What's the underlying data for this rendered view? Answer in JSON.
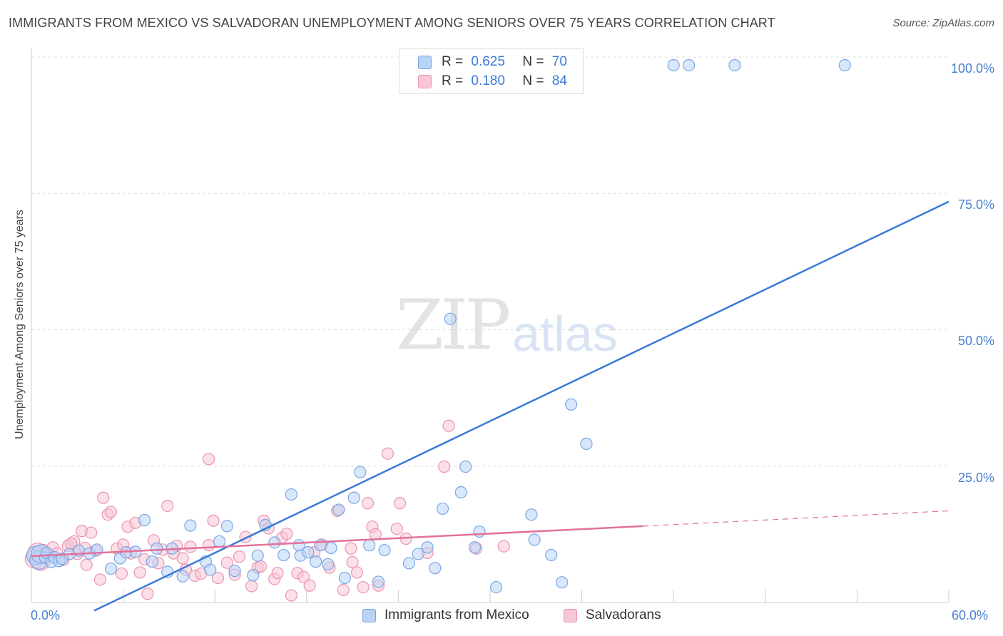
{
  "header": {
    "title": "IMMIGRANTS FROM MEXICO VS SALVADORAN UNEMPLOYMENT AMONG SENIORS OVER 75 YEARS CORRELATION CHART",
    "source": "Source: ZipAtlas.com"
  },
  "watermark": {
    "zip": "ZIP",
    "atlas": "atlas"
  },
  "legend": {
    "rows": [
      {
        "r_label": "R = ",
        "r_value": "0.625",
        "n_label": "N = ",
        "n_value": "70"
      },
      {
        "r_label": "R = ",
        "r_value": "0.180",
        "n_label": "N = ",
        "n_value": "84"
      }
    ]
  },
  "bottom_legend": [
    "Immigrants from Mexico",
    "Salvadorans"
  ],
  "colors": {
    "blue_fill": "#b9d3f5",
    "blue_stroke": "#7aa7e3",
    "blue_line": "#3a7ad8",
    "pink_fill": "#f8c7d6",
    "pink_stroke": "#ee93b0",
    "pink_line": "#e4709a",
    "grid": "#dcdcdc",
    "tick_text": "#4a7fd1"
  },
  "chart_data": {
    "type": "scatter",
    "title": "IMMIGRANTS FROM MEXICO VS SALVADORAN UNEMPLOYMENT AMONG SENIORS OVER 75 YEARS CORRELATION CHART",
    "xlabel": "",
    "ylabel": "Unemployment Among Seniors over 75 years",
    "xlim": [
      0,
      60
    ],
    "ylim": [
      0,
      100
    ],
    "x_tick_labels": [
      "0.0%",
      "60.0%"
    ],
    "y_tick_labels": [
      "100.0%",
      "75.0%",
      "50.0%",
      "25.0%"
    ],
    "y_ticks": [
      100,
      75,
      50,
      25
    ],
    "grid": true,
    "legend_placement": "top-center",
    "series": [
      {
        "name": "Immigrants from Mexico",
        "r": 0.625,
        "n": 70,
        "trend": {
          "x": [
            4.1,
            60
          ],
          "y": [
            -1.5,
            73.5
          ],
          "dashed_from": null
        },
        "points": [
          [
            0.3,
            8.6
          ],
          [
            0.5,
            7.8
          ],
          [
            0.6,
            8.9
          ],
          [
            0.9,
            8.2
          ],
          [
            1.0,
            9.1
          ],
          [
            1.3,
            7.4
          ],
          [
            1.5,
            8.3
          ],
          [
            1.8,
            7.6
          ],
          [
            2.0,
            8.0
          ],
          [
            2.5,
            8.9
          ],
          [
            3.1,
            9.5
          ],
          [
            3.8,
            9.0
          ],
          [
            4.3,
            9.7
          ],
          [
            5.2,
            6.2
          ],
          [
            5.8,
            8.1
          ],
          [
            6.2,
            9.2
          ],
          [
            7.4,
            15.1
          ],
          [
            7.9,
            7.5
          ],
          [
            8.2,
            9.9
          ],
          [
            8.9,
            5.6
          ],
          [
            9.2,
            9.9
          ],
          [
            9.9,
            4.8
          ],
          [
            10.4,
            14.1
          ],
          [
            11.4,
            7.5
          ],
          [
            11.7,
            6.0
          ],
          [
            12.3,
            11.2
          ],
          [
            12.8,
            14.0
          ],
          [
            13.3,
            5.8
          ],
          [
            14.5,
            5.0
          ],
          [
            14.8,
            8.6
          ],
          [
            15.3,
            14.2
          ],
          [
            15.9,
            11.0
          ],
          [
            16.5,
            8.7
          ],
          [
            17.0,
            19.8
          ],
          [
            17.5,
            10.5
          ],
          [
            17.6,
            8.6
          ],
          [
            18.1,
            9.2
          ],
          [
            18.6,
            7.5
          ],
          [
            18.9,
            10.5
          ],
          [
            19.4,
            7.0
          ],
          [
            19.6,
            10.0
          ],
          [
            20.5,
            4.5
          ],
          [
            21.1,
            19.2
          ],
          [
            21.5,
            23.9
          ],
          [
            22.1,
            10.5
          ],
          [
            22.7,
            3.8
          ],
          [
            23.1,
            9.6
          ],
          [
            24.7,
            7.2
          ],
          [
            25.3,
            8.9
          ],
          [
            25.9,
            10.1
          ],
          [
            26.4,
            6.3
          ],
          [
            26.9,
            17.2
          ],
          [
            27.4,
            52.0
          ],
          [
            28.1,
            20.2
          ],
          [
            28.4,
            24.9
          ],
          [
            29.0,
            10.1
          ],
          [
            29.3,
            13.0
          ],
          [
            30.4,
            2.8
          ],
          [
            32.7,
            16.1
          ],
          [
            32.9,
            11.5
          ],
          [
            34.0,
            8.7
          ],
          [
            34.7,
            3.7
          ],
          [
            35.3,
            36.3
          ],
          [
            36.3,
            29.1
          ],
          [
            42.0,
            98.5
          ],
          [
            43.0,
            98.5
          ],
          [
            46.0,
            98.5
          ],
          [
            53.2,
            98.5
          ],
          [
            20.1,
            17.0
          ],
          [
            6.8,
            9.3
          ]
        ]
      },
      {
        "name": "Salvadorans",
        "r": 0.18,
        "n": 84,
        "trend": {
          "x": [
            0,
            40
          ],
          "y": [
            8.5,
            14.0
          ],
          "dashed_from": 40,
          "dashed_to": [
            60,
            16.8
          ]
        },
        "points": [
          [
            0.2,
            8.0
          ],
          [
            0.4,
            9.2
          ],
          [
            0.6,
            7.6
          ],
          [
            0.8,
            9.6
          ],
          [
            1.1,
            8.5
          ],
          [
            1.4,
            10.1
          ],
          [
            1.7,
            9.0
          ],
          [
            2.1,
            7.8
          ],
          [
            2.4,
            10.4
          ],
          [
            2.8,
            11.2
          ],
          [
            3.0,
            8.9
          ],
          [
            3.3,
            13.1
          ],
          [
            3.6,
            6.9
          ],
          [
            3.9,
            12.8
          ],
          [
            4.2,
            9.5
          ],
          [
            4.5,
            4.2
          ],
          [
            4.7,
            19.2
          ],
          [
            5.0,
            16.1
          ],
          [
            5.2,
            16.6
          ],
          [
            5.6,
            9.9
          ],
          [
            5.9,
            5.3
          ],
          [
            6.3,
            13.9
          ],
          [
            6.5,
            9.0
          ],
          [
            6.8,
            14.6
          ],
          [
            7.1,
            5.5
          ],
          [
            7.4,
            7.9
          ],
          [
            7.6,
            1.6
          ],
          [
            8.0,
            11.4
          ],
          [
            8.3,
            7.2
          ],
          [
            8.6,
            9.7
          ],
          [
            8.9,
            17.7
          ],
          [
            9.3,
            9.0
          ],
          [
            9.5,
            10.4
          ],
          [
            10.1,
            6.0
          ],
          [
            10.4,
            10.2
          ],
          [
            10.7,
            4.9
          ],
          [
            11.1,
            5.3
          ],
          [
            11.6,
            26.3
          ],
          [
            11.9,
            15.0
          ],
          [
            12.2,
            4.5
          ],
          [
            12.8,
            7.3
          ],
          [
            13.3,
            5.1
          ],
          [
            13.6,
            8.4
          ],
          [
            14.0,
            12.0
          ],
          [
            14.4,
            3.0
          ],
          [
            14.8,
            6.4
          ],
          [
            15.2,
            15.0
          ],
          [
            15.5,
            13.6
          ],
          [
            15.9,
            4.3
          ],
          [
            16.1,
            5.4
          ],
          [
            16.4,
            11.9
          ],
          [
            16.7,
            12.6
          ],
          [
            17.0,
            1.3
          ],
          [
            17.4,
            5.4
          ],
          [
            17.8,
            4.7
          ],
          [
            18.2,
            3.1
          ],
          [
            18.5,
            9.2
          ],
          [
            19.0,
            10.6
          ],
          [
            19.5,
            6.4
          ],
          [
            20.0,
            16.8
          ],
          [
            20.4,
            2.3
          ],
          [
            20.9,
            9.9
          ],
          [
            21.3,
            5.5
          ],
          [
            21.7,
            2.8
          ],
          [
            22.0,
            18.2
          ],
          [
            22.3,
            13.9
          ],
          [
            22.7,
            3.1
          ],
          [
            23.3,
            27.3
          ],
          [
            23.9,
            13.5
          ],
          [
            24.1,
            18.2
          ],
          [
            24.5,
            11.7
          ],
          [
            25.9,
            9.1
          ],
          [
            27.0,
            24.9
          ],
          [
            27.3,
            32.4
          ],
          [
            29.1,
            9.9
          ],
          [
            30.9,
            10.3
          ],
          [
            9.9,
            8.1
          ],
          [
            2.6,
            10.8
          ],
          [
            11.6,
            10.5
          ],
          [
            15.0,
            6.6
          ],
          [
            21.0,
            7.4
          ],
          [
            22.5,
            12.5
          ],
          [
            6.0,
            10.6
          ],
          [
            3.5,
            10.0
          ]
        ]
      }
    ]
  }
}
